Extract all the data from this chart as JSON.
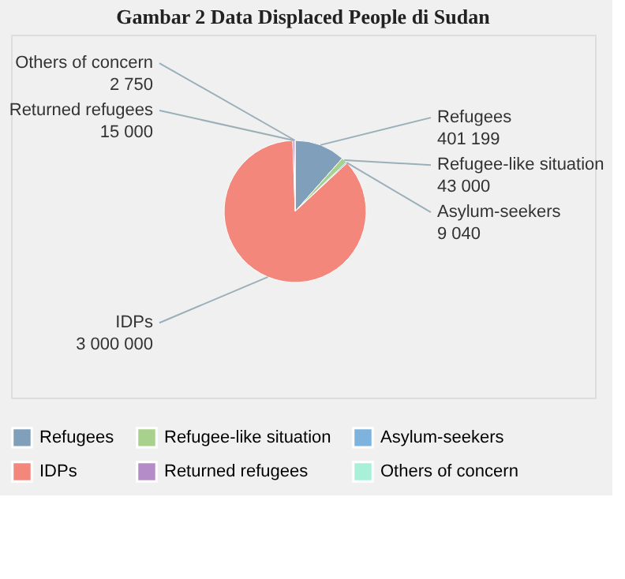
{
  "chart_data": {
    "type": "pie",
    "title": "Gambar 2 Data Displaced People di Sudan",
    "categories": [
      "Refugees",
      "Refugee-like situation",
      "Asylum-seekers",
      "IDPs",
      "Returned refugees",
      "Others of concern"
    ],
    "values": [
      401199,
      43000,
      9040,
      3000000,
      15000,
      2750
    ],
    "value_labels": [
      "401 199",
      "43 000",
      "9 040",
      "3 000 000",
      "15 000",
      "2 750"
    ],
    "colors": [
      "#7f9fba",
      "#a9d18e",
      "#7db3dc",
      "#f4877c",
      "#b48cc8",
      "#a8f0d8"
    ],
    "legend": "bottom"
  }
}
